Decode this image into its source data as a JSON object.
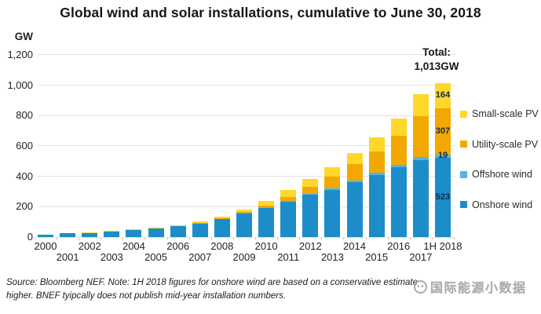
{
  "chart_data": {
    "type": "bar",
    "stacked": true,
    "title": "Global wind and solar installations, cumulative to June 30, 2018",
    "ylabel": "GW",
    "ylim": [
      0,
      1200
    ],
    "ytick_labels": [
      "0",
      "200",
      "400",
      "600",
      "800",
      "1,000",
      "1,200"
    ],
    "grid": true,
    "legend_position": "right",
    "categories": [
      "2000",
      "2001",
      "2002",
      "2003",
      "2004",
      "2005",
      "2006",
      "2007",
      "2008",
      "2009",
      "2010",
      "2011",
      "2012",
      "2013",
      "2014",
      "2015",
      "2016",
      "2017",
      "1H 2018"
    ],
    "series": [
      {
        "name": "Onshore wind",
        "color": "#1d8dca",
        "values": [
          17,
          24,
          30,
          38,
          46,
          58,
          73,
          92,
          119,
          156,
          194,
          233,
          278,
          312,
          362,
          410,
          462,
          508,
          523
        ]
      },
      {
        "name": "Offshore wind",
        "color": "#55b4e5",
        "values": [
          0,
          0,
          0,
          0,
          0,
          1,
          1,
          1,
          1,
          2,
          3,
          4,
          5,
          7,
          9,
          12,
          14,
          18,
          19
        ]
      },
      {
        "name": "Utility-scale PV",
        "color": "#f2a800",
        "values": [
          0,
          0,
          0,
          0,
          1,
          1,
          1,
          2,
          3,
          5,
          10,
          28,
          48,
          78,
          108,
          143,
          193,
          272,
          307
        ]
      },
      {
        "name": "Small-scale PV",
        "color": "#ffd72b",
        "values": [
          1,
          1,
          2,
          2,
          3,
          4,
          5,
          7,
          13,
          19,
          31,
          44,
          54,
          63,
          76,
          90,
          110,
          140,
          164
        ]
      }
    ],
    "last_bar_segment_labels": [
      "523",
      "19",
      "307",
      "164"
    ],
    "total_annotation": {
      "line1": "Total:",
      "line2": "1,013GW"
    }
  },
  "legend": [
    {
      "label": "Small-scale PV",
      "color": "#ffd72b"
    },
    {
      "label": "Utility-scale PV",
      "color": "#f2a800"
    },
    {
      "label": "Offshore wind",
      "color": "#55b4e5"
    },
    {
      "label": "Onshore wind",
      "color": "#1d8dca"
    }
  ],
  "footnote": {
    "line1": "Source: Bloomberg NEF. Note: 1H 2018 figures for onshore wind are based on a conservative estimate",
    "line2": "higher. BNEF tyipcally does not publish mid-year installation numbers."
  },
  "watermark": {
    "text": "国际能源小数据"
  }
}
